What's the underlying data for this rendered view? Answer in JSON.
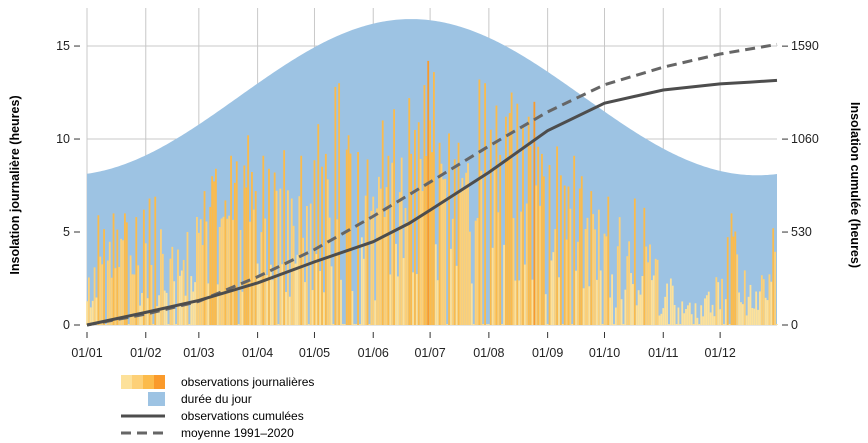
{
  "chart_data": {
    "type": "bar",
    "title": "",
    "ylabel_left": "Insolation journalière (heures)",
    "ylabel_right": "Insolation cumulée (heures)",
    "ylim_left": [
      0,
      16.4
    ],
    "ylim_right": [
      0,
      1739
    ],
    "yticks_left": [
      "0",
      "5",
      "10",
      "15"
    ],
    "yticks_right": [
      "0",
      "530",
      "1060",
      "1590"
    ],
    "x_ticks": [
      "01/01",
      "01/02",
      "01/03",
      "01/04",
      "01/05",
      "01/06",
      "01/07",
      "01/08",
      "01/09",
      "01/10",
      "01/11",
      "01/12"
    ],
    "x_tick_days": [
      0,
      31,
      59,
      90,
      120,
      151,
      181,
      212,
      243,
      273,
      304,
      334
    ],
    "days_in_year": 365,
    "grid": true,
    "legend_position": "bottom-left",
    "colors": {
      "daylight": "#9dc3e3",
      "bar_light": "#fde19a",
      "bar_mid1": "#fdd077",
      "bar_mid2": "#fcbb4b",
      "bar_dark": "#fa9a2b",
      "cumulative": "#4d4d4d",
      "normal": "#666666",
      "grid": "#c8c8c8"
    },
    "daylight_hours": {
      "min_value": 8.05,
      "max_value": 16.45,
      "max_day": 171
    },
    "daily_observation_peaks": [
      {
        "day": 4,
        "value": 3.1
      },
      {
        "day": 6,
        "value": 5.9
      },
      {
        "day": 14,
        "value": 6.0
      },
      {
        "day": 20,
        "value": 6.0
      },
      {
        "day": 26,
        "value": 5.8
      },
      {
        "day": 30,
        "value": 6.2
      },
      {
        "day": 33,
        "value": 6.8
      },
      {
        "day": 36,
        "value": 6.9
      },
      {
        "day": 45,
        "value": 4.2
      },
      {
        "day": 53,
        "value": 5.0
      },
      {
        "day": 62,
        "value": 7.2
      },
      {
        "day": 66,
        "value": 8.0
      },
      {
        "day": 68,
        "value": 8.4
      },
      {
        "day": 73,
        "value": 6.7
      },
      {
        "day": 76,
        "value": 9.1
      },
      {
        "day": 79,
        "value": 8.8
      },
      {
        "day": 85,
        "value": 10.2
      },
      {
        "day": 89,
        "value": 7.2
      },
      {
        "day": 93,
        "value": 9.1
      },
      {
        "day": 96,
        "value": 8.4
      },
      {
        "day": 99,
        "value": 8.2
      },
      {
        "day": 104,
        "value": 9.4
      },
      {
        "day": 108,
        "value": 6.8
      },
      {
        "day": 113,
        "value": 9.1
      },
      {
        "day": 116,
        "value": 6.4
      },
      {
        "day": 122,
        "value": 10.8
      },
      {
        "day": 126,
        "value": 9.2
      },
      {
        "day": 131,
        "value": 12.8
      },
      {
        "day": 133,
        "value": 13.0
      },
      {
        "day": 138,
        "value": 10.2
      },
      {
        "day": 143,
        "value": 9.3
      },
      {
        "day": 148,
        "value": 8.9
      },
      {
        "day": 151,
        "value": 6.9
      },
      {
        "day": 156,
        "value": 11.0
      },
      {
        "day": 159,
        "value": 9.1
      },
      {
        "day": 162,
        "value": 11.6
      },
      {
        "day": 166,
        "value": 9.0
      },
      {
        "day": 170,
        "value": 12.2
      },
      {
        "day": 175,
        "value": 10.9
      },
      {
        "day": 178,
        "value": 12.9
      },
      {
        "day": 180,
        "value": 14.2
      },
      {
        "day": 183,
        "value": 13.6
      },
      {
        "day": 186,
        "value": 9.8
      },
      {
        "day": 191,
        "value": 10.3
      },
      {
        "day": 196,
        "value": 9.8
      },
      {
        "day": 201,
        "value": 8.7
      },
      {
        "day": 207,
        "value": 13.2
      },
      {
        "day": 210,
        "value": 13.0
      },
      {
        "day": 213,
        "value": 10.5
      },
      {
        "day": 216,
        "value": 11.8
      },
      {
        "day": 221,
        "value": 11.2
      },
      {
        "day": 224,
        "value": 12.5
      },
      {
        "day": 227,
        "value": 11.9
      },
      {
        "day": 230,
        "value": 10.7
      },
      {
        "day": 233,
        "value": 11.2
      },
      {
        "day": 236,
        "value": 12.0
      },
      {
        "day": 240,
        "value": 9.2
      },
      {
        "day": 244,
        "value": 8.6
      },
      {
        "day": 248,
        "value": 9.6
      },
      {
        "day": 252,
        "value": 7.5
      },
      {
        "day": 257,
        "value": 9.1
      },
      {
        "day": 261,
        "value": 8.0
      },
      {
        "day": 266,
        "value": 7.2
      },
      {
        "day": 270,
        "value": 6.2
      },
      {
        "day": 275,
        "value": 6.9
      },
      {
        "day": 281,
        "value": 5.8
      },
      {
        "day": 286,
        "value": 4.5
      },
      {
        "day": 289,
        "value": 6.8
      },
      {
        "day": 294,
        "value": 6.3
      },
      {
        "day": 301,
        "value": 3.5
      },
      {
        "day": 308,
        "value": 2.5
      },
      {
        "day": 318,
        "value": 1.2
      },
      {
        "day": 327,
        "value": 1.6
      },
      {
        "day": 340,
        "value": 6.0
      },
      {
        "day": 353,
        "value": 1.8
      },
      {
        "day": 362,
        "value": 5.2
      }
    ],
    "cumulative_observations": {
      "day": [
        0,
        31,
        59,
        90,
        120,
        151,
        170,
        181,
        212,
        243,
        273,
        304,
        334,
        350,
        364
      ],
      "value": [
        0,
        72,
        140,
        240,
        360,
        475,
        580,
        655,
        870,
        1108,
        1265,
        1340,
        1375,
        1385,
        1395
      ]
    },
    "normal_1991_2020": {
      "day": [
        0,
        31,
        59,
        90,
        120,
        151,
        181,
        212,
        243,
        273,
        304,
        334,
        364
      ],
      "value": [
        0,
        62,
        135,
        275,
        430,
        620,
        815,
        1020,
        1215,
        1370,
        1470,
        1545,
        1600
      ]
    },
    "legend": [
      {
        "key": "daily",
        "label": "observations journalières"
      },
      {
        "key": "daylight",
        "label": "durée du jour"
      },
      {
        "key": "cumulative",
        "label": "observations cumulées"
      },
      {
        "key": "normal",
        "label": "moyenne 1991–2020"
      }
    ]
  }
}
